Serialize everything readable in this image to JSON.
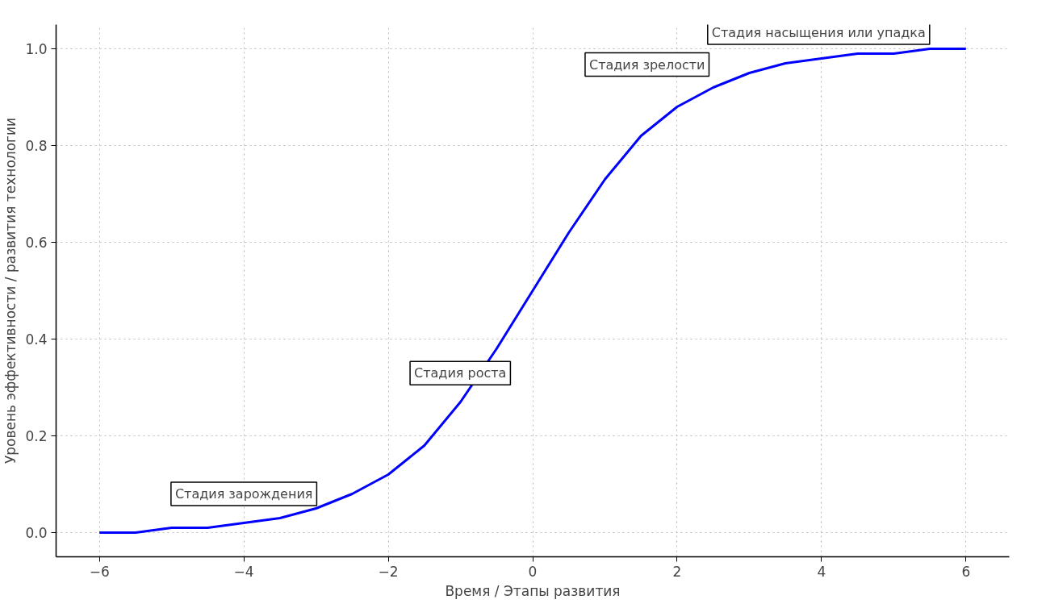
{
  "chart_data": {
    "type": "line",
    "xlabel": "Время / Этапы развития",
    "ylabel": "Уровень эффективности / развития технологии",
    "x": [
      -6,
      -5.5,
      -5,
      -4.5,
      -4,
      -3.5,
      -3,
      -2.5,
      -2,
      -1.5,
      -1,
      -0.5,
      0,
      0.5,
      1,
      1.5,
      2,
      2.5,
      3,
      3.5,
      4,
      4.5,
      5,
      5.5,
      6
    ],
    "series": [
      {
        "color": "#0000ff",
        "values": [
          0.0,
          0.0,
          0.01,
          0.01,
          0.02,
          0.03,
          0.05,
          0.08,
          0.12,
          0.18,
          0.27,
          0.38,
          0.5,
          0.62,
          0.73,
          0.82,
          0.88,
          0.92,
          0.95,
          0.97,
          0.98,
          0.99,
          0.99,
          1.0,
          1.0
        ]
      }
    ],
    "xlim": [
      -6.6,
      6.6
    ],
    "ylim": [
      -0.05,
      1.05
    ],
    "xticks": [
      -6,
      -4,
      -2,
      0,
      2,
      4,
      6
    ],
    "yticks": [
      {
        "value": 0,
        "label": "0.0"
      },
      {
        "value": 0.2,
        "label": "0.2"
      },
      {
        "value": 0.4,
        "label": "0.4"
      },
      {
        "value": 0.6,
        "label": "0.6"
      },
      {
        "value": 0.8,
        "label": "0.8"
      },
      {
        "value": 1,
        "label": "1.0"
      }
    ],
    "grid": true,
    "annotations": [
      "Стадия зарождения",
      "Стадия роста",
      "Стадия зрелости",
      "Стадия насыщения или упадка"
    ]
  }
}
